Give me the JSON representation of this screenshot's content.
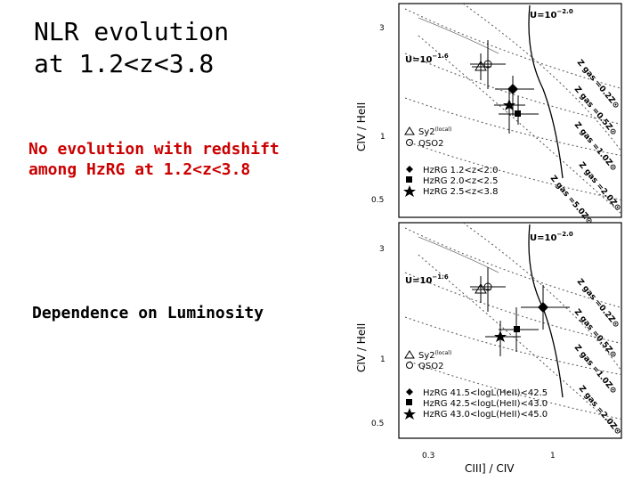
{
  "slide": {
    "title_line1": "NLR evolution",
    "title_line2": "at 1.2<z<3.8",
    "note_red_line1": "No evolution with redshift",
    "note_red_line2": "among HzRG at 1.2<z<3.8",
    "note_lum": "Dependence on Luminosity",
    "note_red_color": "#cc0000"
  },
  "top_panel": {
    "ylabel": "CIV / HeII",
    "yticks": [
      "3",
      "1",
      "0.5"
    ],
    "u_label_top": "U=10",
    "u_exp_top": "−2.0",
    "u_label_mid": "U=10",
    "u_exp_mid": "−1.6",
    "zgas_labels": [
      "Z gas =0.2Z⊙",
      "Z gas =0.5Z⊙",
      "Z gas =1.0Z⊙",
      "Z gas =2.0Z⊙",
      "Z gas =5.0Z⊙"
    ],
    "legend": [
      {
        "marker": "triangle-open",
        "text": "Sy2",
        "sup": "(local)"
      },
      {
        "marker": "circle-open",
        "text": "QSO2",
        "sup": ""
      },
      {
        "marker": "diamond",
        "text": "HzRG  1.2<z<2.0",
        "sup": ""
      },
      {
        "marker": "square",
        "text": "HzRG  2.0<z<2.5",
        "sup": ""
      },
      {
        "marker": "star",
        "text": "HzRG  2.5<z<3.8",
        "sup": ""
      }
    ]
  },
  "bottom_panel": {
    "ylabel": "CIV / HeII",
    "yticks": [
      "3",
      "1",
      "0.5"
    ],
    "xticks": [
      "0.3",
      "1"
    ],
    "xlabel": "CIII] / CIV",
    "u_label_top": "U=10",
    "u_exp_top": "−2.0",
    "u_label_mid": "U=10",
    "u_exp_mid": "−1.6",
    "zgas_labels": [
      "Z gas =0.2Z⊙",
      "Z gas =0.5Z⊙",
      "Z gas =1.0Z⊙",
      "Z gas =2.0Z⊙"
    ],
    "legend": [
      {
        "marker": "triangle-open",
        "text": "Sy2",
        "sup": "(local)"
      },
      {
        "marker": "circle-open",
        "text": "QSO2",
        "sup": ""
      },
      {
        "marker": "diamond",
        "text": "HzRG  41.5<logL(HeII)<42.5",
        "sup": ""
      },
      {
        "marker": "square",
        "text": "HzRG  42.5<logL(HeII)<43.0",
        "sup": ""
      },
      {
        "marker": "star",
        "text": "HzRG  43.0<logL(HeII)<45.0",
        "sup": ""
      }
    ]
  }
}
